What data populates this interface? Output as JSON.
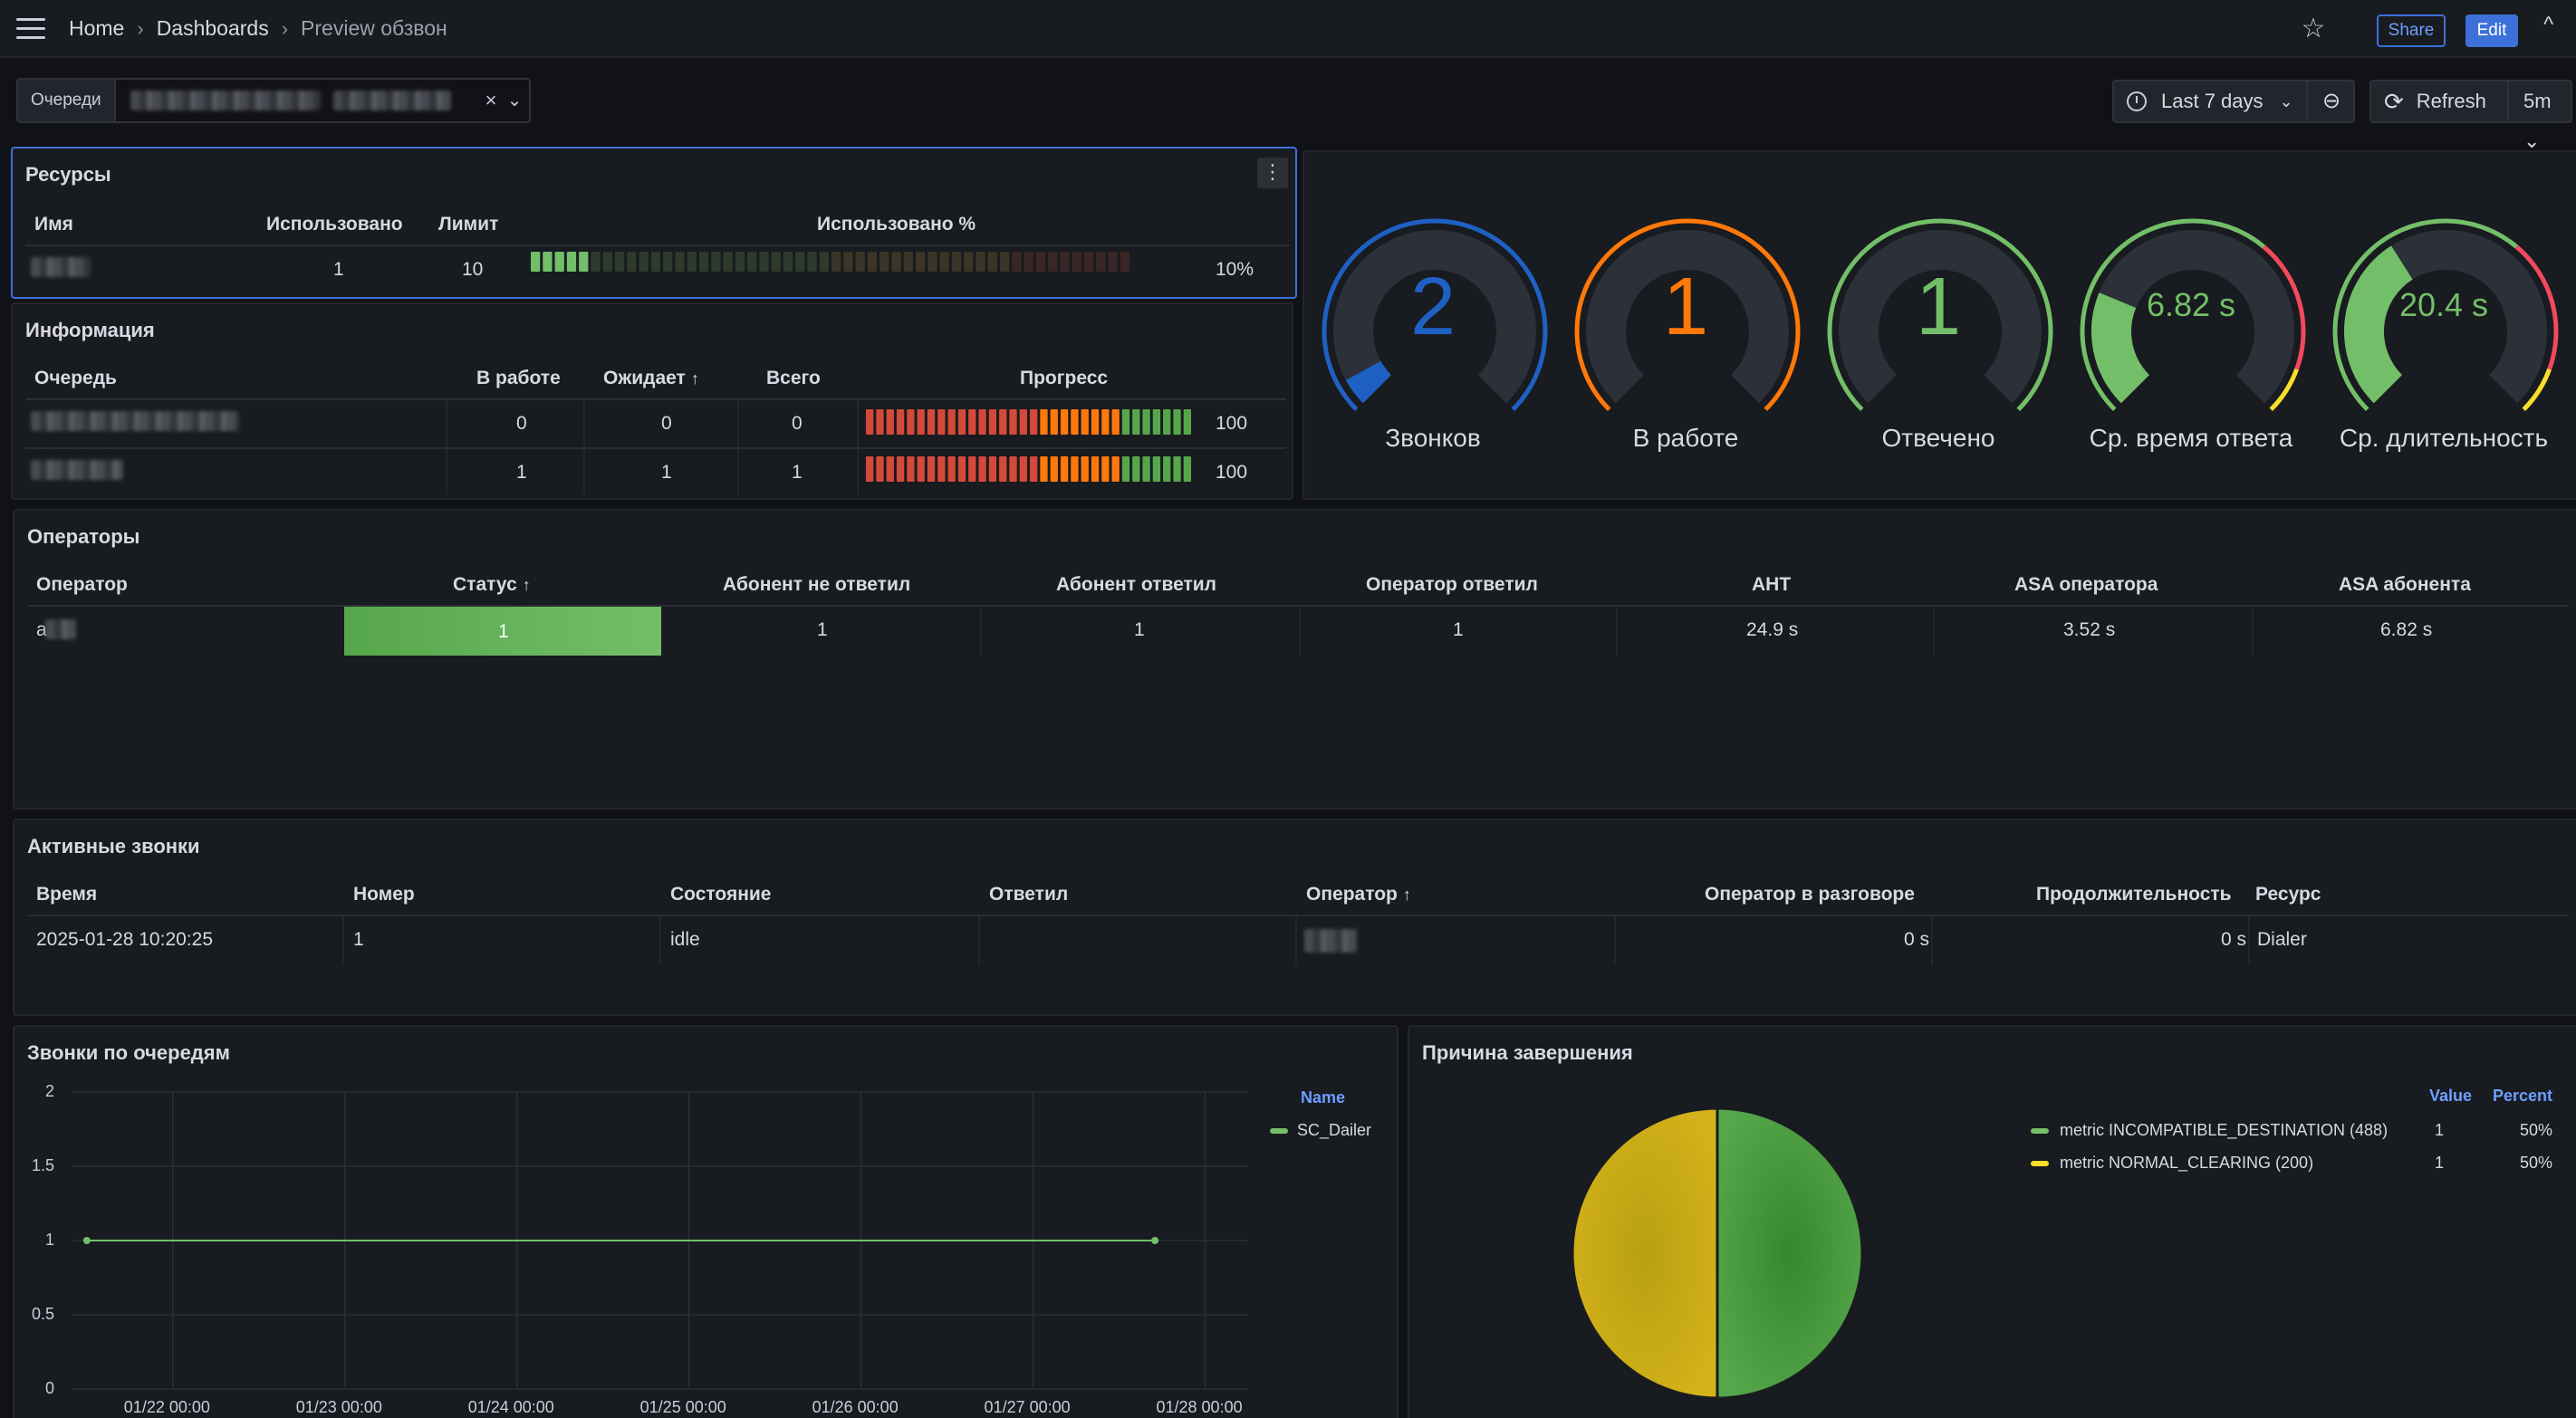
{
  "breadcrumb": {
    "home": "Home",
    "dashboards": "Dashboards",
    "current": "Preview обзвон"
  },
  "header": {
    "share": "Share",
    "edit": "Edit"
  },
  "variable": {
    "label": "Очереди"
  },
  "time": {
    "range": "Last 7 days",
    "refresh": "Refresh",
    "interval": "5m"
  },
  "resources": {
    "title": "Ресурсы",
    "columns": [
      "Имя",
      "Использовано",
      "Лимит",
      "Использовано %"
    ],
    "row": {
      "used": "1",
      "limit": "10",
      "pct_label": "10%",
      "pct": 0.1
    }
  },
  "info": {
    "title": "Информация",
    "columns": [
      "Очередь",
      "В работе",
      "Ожидает",
      "Всего",
      "Прогресс"
    ],
    "rows": [
      {
        "in_work": "0",
        "waiting": "0",
        "total": "0",
        "progress": "100"
      },
      {
        "in_work": "1",
        "waiting": "1",
        "total": "1",
        "progress": "100"
      }
    ]
  },
  "stats": [
    {
      "value": "2",
      "label": "Звонков",
      "color": "#1f60c4"
    },
    {
      "value": "1",
      "label": "В работе",
      "color": "#ff780a"
    },
    {
      "value": "1",
      "label": "Отвечено",
      "color": "#73bf69"
    },
    {
      "value": "6.82 s",
      "label": "Ср. время ответа",
      "color": "#73bf69"
    },
    {
      "value": "20.4 s",
      "label": "Ср. длительность",
      "color": "#73bf69"
    }
  ],
  "operators": {
    "title": "Операторы",
    "columns": [
      "Оператор",
      "Статус",
      "Абонент не ответил",
      "Абонент ответил",
      "Оператор ответил",
      "AHT",
      "ASA оператора",
      "ASA абонента"
    ],
    "row": {
      "name": "а",
      "status": "1",
      "no_answer": "1",
      "answered": "1",
      "op_answered": "1",
      "aht": "24.9 s",
      "asa_op": "3.52 s",
      "asa_sub": "6.82 s"
    }
  },
  "active_calls": {
    "title": "Активные звонки",
    "columns": [
      "Время",
      "Номер",
      "Состояние",
      "Ответил",
      "Оператор",
      "Оператор в разговоре",
      "Продолжительность",
      "Ресурс"
    ],
    "row": {
      "time": "2025-01-28 10:20:25",
      "number": "1",
      "state": "idle",
      "answered": "",
      "op_talk": "0 s",
      "duration": "0 s",
      "resource": "Dialer"
    }
  },
  "queue_calls": {
    "title": "Звонки по очередям",
    "legend_header": "Name",
    "chart_data": {
      "type": "line",
      "x_ticks": [
        "01/22 00:00",
        "01/23 00:00",
        "01/24 00:00",
        "01/25 00:00",
        "01/26 00:00",
        "01/27 00:00",
        "01/28 00:00"
      ],
      "y_ticks": [
        "2",
        "1.5",
        "1",
        "0.5",
        "0"
      ],
      "ylim": [
        0,
        2
      ],
      "series": [
        {
          "name": "SC_Dailer",
          "color": "#73bf69",
          "points": [
            {
              "x": "2025-01-21 12:00",
              "y": 1
            },
            {
              "x": "2025-01-27 17:00",
              "y": 1
            }
          ]
        }
      ]
    }
  },
  "reason": {
    "title": "Причина завершения",
    "legend_headers": {
      "value": "Value",
      "percent": "Percent"
    },
    "chart_data": {
      "type": "pie",
      "slices": [
        {
          "label": "metric INCOMPATIBLE_DESTINATION (488)",
          "value": "1",
          "percent": "50%",
          "color": "#73bf69",
          "share": 0.5
        },
        {
          "label": "metric NORMAL_CLEARING (200)",
          "value": "1",
          "percent": "50%",
          "color": "#fade2a",
          "share": 0.5
        }
      ]
    }
  }
}
